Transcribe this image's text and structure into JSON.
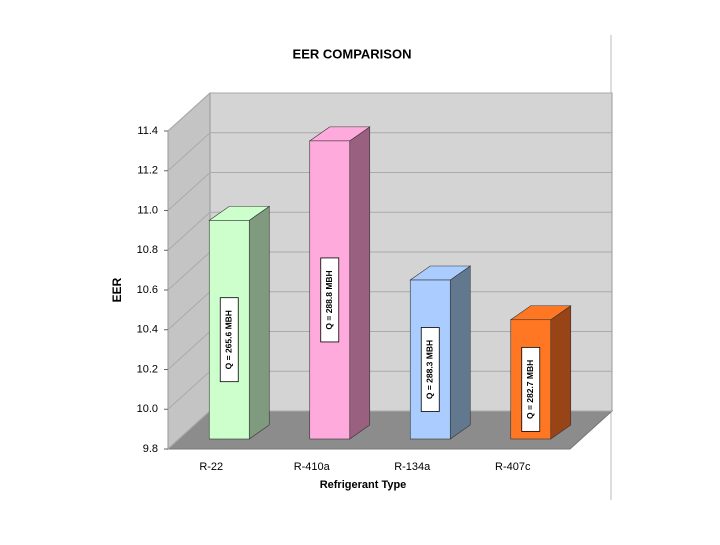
{
  "chart_data": {
    "type": "bar3d",
    "title": "EER COMPARISON",
    "x_label": "Refrigerant Type",
    "y_label": "EER",
    "categories": [
      "R-22",
      "R-410a",
      "R-134a",
      "R-407c"
    ],
    "values": [
      10.9,
      11.3,
      10.6,
      10.4
    ],
    "annotations": [
      "Q = 265.6 MBH",
      "Q = 288.8 MBH",
      "Q = 288.3 MBH",
      "Q = 282.7 MBH"
    ],
    "colors": [
      "#ccffcc",
      "#ffaadd",
      "#aaccff",
      "#ff7722"
    ],
    "side_colors": [
      "#7f9a7f",
      "#996080",
      "#62788f",
      "#994416"
    ],
    "ylim": [
      9.8,
      11.4
    ],
    "yticks": [
      9.8,
      {
        "value": 10,
        "label": "10.0"
      },
      10.2,
      10.4,
      10.6,
      10.8,
      {
        "value": 11,
        "label": "11.0"
      },
      11.2,
      11.4
    ],
    "grid": true
  }
}
